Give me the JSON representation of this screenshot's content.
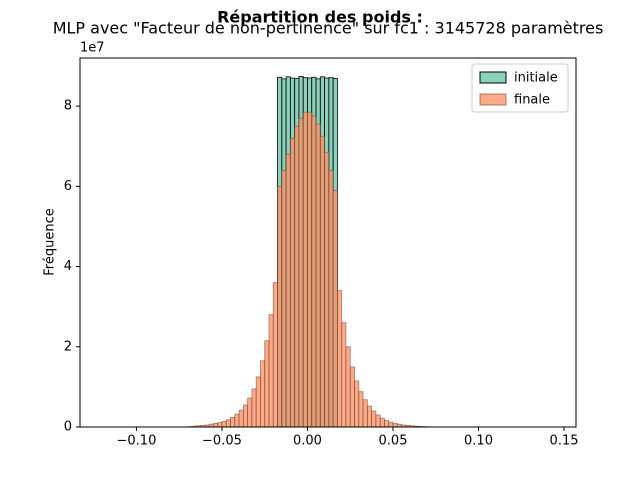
{
  "chart_data": {
    "type": "histogram",
    "title": "Répartition des poids :",
    "subtitle": "MLP avec \"Facteur de non-pertinence\" sur fc1 : 3145728 paramètres",
    "ylabel": "Fréquence",
    "y_offset_label": "1e7",
    "xlim": [
      -0.133,
      0.157
    ],
    "ylim": [
      0,
      9.2
    ],
    "xticks": [
      {
        "value": -0.1,
        "label": "−0.10"
      },
      {
        "value": -0.05,
        "label": "−0.05"
      },
      {
        "value": 0,
        "label": "0.00"
      },
      {
        "value": 0.05,
        "label": "0.05"
      },
      {
        "value": 0.1,
        "label": "0.10"
      },
      {
        "value": 0.15,
        "label": "0.15"
      }
    ],
    "yticks": [
      0,
      2,
      4,
      6,
      8
    ],
    "legend": "upper right",
    "series": [
      {
        "name": "initiale",
        "color": "#66c2a5",
        "bins": [
          -0.0175,
          -0.015,
          -0.0125,
          -0.01,
          -0.0075,
          -0.005,
          -0.0025,
          0,
          0.0025,
          0.005,
          0.0075,
          0.01,
          0.0125,
          0.015,
          0.0175
        ],
        "values": [
          8.72,
          8.68,
          8.73,
          8.7,
          8.69,
          8.74,
          8.71,
          8.7,
          8.72,
          8.68,
          8.73,
          8.7,
          8.71,
          8.69
        ]
      },
      {
        "name": "finale",
        "color": "#fc8d62",
        "bins": [
          -0.12,
          -0.1175,
          -0.115,
          -0.1125,
          -0.11,
          -0.1075,
          -0.105,
          -0.1025,
          -0.1,
          -0.0975,
          -0.095,
          -0.0925,
          -0.09,
          -0.0875,
          -0.085,
          -0.0825,
          -0.08,
          -0.0775,
          -0.075,
          -0.0725,
          -0.07,
          -0.0675,
          -0.065,
          -0.0625,
          -0.06,
          -0.0575,
          -0.055,
          -0.0525,
          -0.05,
          -0.0475,
          -0.045,
          -0.0425,
          -0.04,
          -0.0375,
          -0.035,
          -0.0325,
          -0.03,
          -0.0275,
          -0.025,
          -0.0225,
          -0.02,
          -0.0175,
          -0.015,
          -0.0125,
          -0.01,
          -0.0075,
          -0.005,
          -0.0025,
          0,
          0.0025,
          0.005,
          0.0075,
          0.01,
          0.0125,
          0.015,
          0.0175,
          0.02,
          0.0225,
          0.025,
          0.0275,
          0.03,
          0.0325,
          0.035,
          0.0375,
          0.04,
          0.0425,
          0.045,
          0.0475,
          0.05,
          0.0525,
          0.055,
          0.0575,
          0.06,
          0.0625,
          0.065,
          0.0675,
          0.07,
          0.0725,
          0.075,
          0.0775,
          0.08,
          0.0825,
          0.085,
          0.0875,
          0.09,
          0.0925,
          0.095,
          0.0975,
          0.1,
          0.1025,
          0.105,
          0.1075,
          0.11,
          0.1125,
          0.115,
          0.1175,
          0.12,
          0.1225,
          0.125,
          0.1275,
          0.13,
          0.1325,
          0.135,
          0.1375,
          0.14
        ],
        "values": [
          0,
          0,
          0,
          0,
          0,
          0,
          0,
          0,
          0,
          0,
          0,
          0,
          0,
          0,
          0,
          0,
          0,
          0,
          0,
          0,
          0.01,
          0.02,
          0.03,
          0.04,
          0.05,
          0.07,
          0.09,
          0.11,
          0.14,
          0.18,
          0.24,
          0.32,
          0.42,
          0.55,
          0.72,
          0.95,
          1.25,
          1.65,
          2.15,
          2.8,
          3.6,
          6.0,
          6.4,
          6.8,
          7.2,
          7.5,
          7.7,
          7.85,
          7.85,
          7.75,
          7.55,
          7.25,
          6.85,
          6.4,
          5.9,
          3.4,
          2.6,
          2.0,
          1.5,
          1.15,
          0.88,
          0.68,
          0.52,
          0.4,
          0.3,
          0.22,
          0.16,
          0.12,
          0.09,
          0.07,
          0.05,
          0.04,
          0.03,
          0.02,
          0.015,
          0.01,
          0,
          0,
          0,
          0,
          0,
          0,
          0,
          0,
          0,
          0,
          0,
          0,
          0,
          0,
          0,
          0,
          0,
          0,
          0,
          0,
          0,
          0,
          0,
          0,
          0,
          0,
          0,
          0
        ]
      }
    ]
  }
}
